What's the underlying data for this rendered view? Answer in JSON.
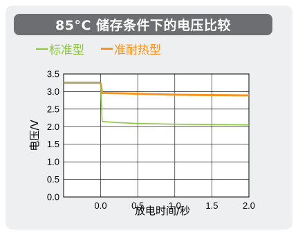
{
  "chart_data": {
    "type": "line",
    "title": "85°C 储存条件下的电压比较",
    "xlabel": "放电时间/秒",
    "ylabel": "电压/V",
    "xlim": [
      -0.5,
      2.0
    ],
    "ylim": [
      0.0,
      3.5
    ],
    "xticks": [
      0.0,
      0.5,
      1.0,
      1.5,
      2.0
    ],
    "xtick_labels": [
      "0.0",
      "0.5",
      "1.0",
      "1.5",
      "2.0"
    ],
    "yticks": [
      0.0,
      0.5,
      1.0,
      1.5,
      2.0,
      2.5,
      3.0,
      3.5
    ],
    "ytick_labels": [
      "0.0",
      "0.5",
      "1.0",
      "1.5",
      "2.0",
      "2.5",
      "3.0",
      "3.5"
    ],
    "grid": true,
    "legend_position": "top-left",
    "series": [
      {
        "name": "标准型",
        "color": "#8cc63f",
        "x": [
          -0.5,
          -0.02,
          0.0,
          0.02,
          0.2,
          0.5,
          1.0,
          1.5,
          2.0
        ],
        "y": [
          3.25,
          3.25,
          3.25,
          2.15,
          2.12,
          2.09,
          2.07,
          2.06,
          2.05
        ]
      },
      {
        "name": "准耐热型",
        "color": "#f7941d",
        "x": [
          -0.5,
          -0.02,
          0.0,
          0.02,
          0.3,
          0.6,
          1.0,
          1.5,
          2.0
        ],
        "y": [
          3.25,
          3.25,
          3.25,
          2.96,
          2.95,
          2.93,
          2.91,
          2.9,
          2.89
        ]
      }
    ]
  },
  "colors": {
    "card_background": "#eeeff0",
    "title_bar": "#6d6e71",
    "pre_discharge_line": "#a8a27a"
  }
}
